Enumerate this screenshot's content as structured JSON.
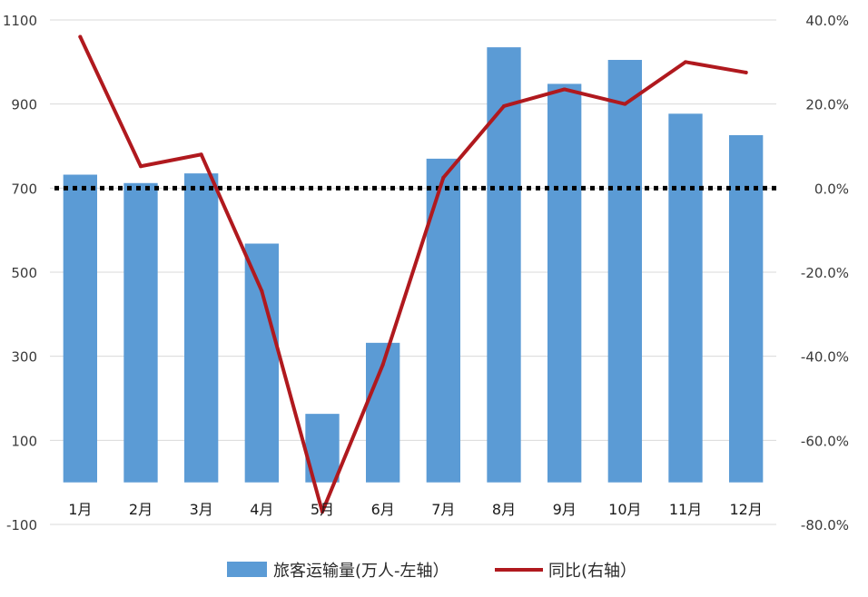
{
  "chart_data": {
    "type": "bar",
    "categories": [
      "1月",
      "2月",
      "3月",
      "4月",
      "5月",
      "6月",
      "7月",
      "8月",
      "9月",
      "10月",
      "11月",
      "12月"
    ],
    "series": [
      {
        "name": "旅客运输量(万人-左轴）",
        "type": "bar",
        "axis": "left",
        "color": "#5b9bd5",
        "values": [
          732,
          712,
          735,
          568,
          163,
          332,
          770,
          1035,
          948,
          1005,
          877,
          826
        ]
      },
      {
        "name": "同比(右轴）",
        "type": "line",
        "axis": "right",
        "color": "#b0191e",
        "values": [
          36.0,
          5.2,
          8.0,
          -24.5,
          -77.0,
          -42.0,
          2.5,
          19.5,
          23.5,
          20.0,
          30.0,
          27.5
        ]
      }
    ],
    "y_left": {
      "ylim": [
        -100,
        1100
      ],
      "ticks": [
        "-100",
        "100",
        "300",
        "500",
        "700",
        "900",
        "1100"
      ]
    },
    "y_right": {
      "ylim": [
        -80,
        40
      ],
      "ticks": [
        "-80.0%",
        "-60.0%",
        "-40.0%",
        "-20.0%",
        "0.0%",
        "20.0%",
        "40.0%"
      ]
    },
    "reference_line": {
      "axis": "right",
      "value": 0,
      "style": "dotted",
      "color": "#000000"
    },
    "grid": true,
    "legend": "bottom"
  }
}
